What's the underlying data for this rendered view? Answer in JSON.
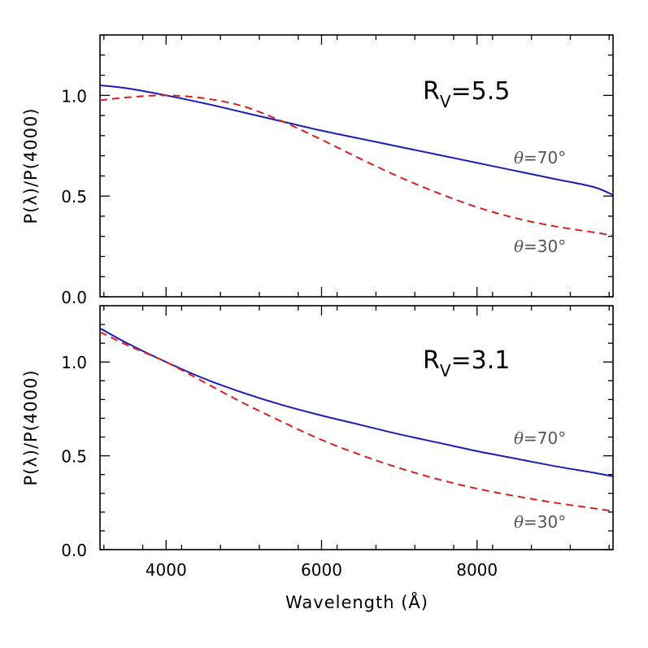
{
  "chart_data": [
    {
      "type": "line",
      "panel_label_main": "R",
      "panel_label_sub": "V",
      "panel_label_value": "=5.5",
      "ylabel": "P(λ)/P(4000)",
      "xlabel": "",
      "xlim": [
        3150,
        9750
      ],
      "ylim": [
        0.0,
        1.3
      ],
      "xticks": [
        4000,
        6000,
        8000
      ],
      "xtick_labels": [
        "",
        "",
        ""
      ],
      "yticks": [
        0.0,
        0.5,
        1.0
      ],
      "ytick_labels": [
        "0.0",
        "0.5",
        "1.0"
      ],
      "series": [
        {
          "name": "θ=70°",
          "style": "solid",
          "color": "#1c1cb8",
          "x": [
            3150,
            3500,
            4000,
            4500,
            5000,
            5500,
            6000,
            6500,
            7000,
            7500,
            8000,
            8500,
            9000,
            9500,
            9750
          ],
          "values": [
            1.05,
            1.035,
            1.0,
            0.96,
            0.915,
            0.87,
            0.825,
            0.785,
            0.745,
            0.705,
            0.665,
            0.625,
            0.585,
            0.545,
            0.505
          ]
        },
        {
          "name": "θ=30°",
          "style": "dashed",
          "color": "#d42020",
          "x": [
            3150,
            3500,
            4000,
            4500,
            5000,
            5500,
            6000,
            6500,
            7000,
            7500,
            8000,
            8500,
            9000,
            9500,
            9750
          ],
          "values": [
            0.975,
            0.99,
            1.0,
            0.985,
            0.945,
            0.87,
            0.78,
            0.685,
            0.595,
            0.515,
            0.445,
            0.39,
            0.35,
            0.32,
            0.305
          ]
        }
      ],
      "annotations": [
        {
          "theta": "θ",
          "text": "=70°",
          "x": 9100,
          "y": 0.69
        },
        {
          "theta": "θ",
          "text": "=30°",
          "x": 9100,
          "y": 0.25
        }
      ]
    },
    {
      "type": "line",
      "panel_label_main": "R",
      "panel_label_sub": "V",
      "panel_label_value": "=3.1",
      "ylabel": "P(λ)/P(4000)",
      "xlabel": "Wavelength (Å)",
      "xlim": [
        3150,
        9750
      ],
      "ylim": [
        0.0,
        1.3
      ],
      "xticks": [
        4000,
        6000,
        8000
      ],
      "xtick_labels": [
        "4000",
        "6000",
        "8000"
      ],
      "yticks": [
        0.0,
        0.5,
        1.0
      ],
      "ytick_labels": [
        "0.0",
        "0.5",
        "1.0"
      ],
      "series": [
        {
          "name": "θ=70°",
          "style": "solid",
          "color": "#1c1cb8",
          "x": [
            3150,
            3500,
            4000,
            4500,
            5000,
            5500,
            6000,
            6500,
            7000,
            7500,
            8000,
            8500,
            9000,
            9500,
            9750
          ],
          "values": [
            1.18,
            1.1,
            1.0,
            0.91,
            0.835,
            0.77,
            0.715,
            0.665,
            0.615,
            0.57,
            0.525,
            0.485,
            0.445,
            0.41,
            0.39
          ]
        },
        {
          "name": "θ=30°",
          "style": "dashed",
          "color": "#d42020",
          "x": [
            3150,
            3500,
            4000,
            4500,
            5000,
            5500,
            6000,
            6500,
            7000,
            7500,
            8000,
            8500,
            9000,
            9500,
            9750
          ],
          "values": [
            1.16,
            1.09,
            1.0,
            0.89,
            0.78,
            0.68,
            0.585,
            0.505,
            0.435,
            0.375,
            0.325,
            0.285,
            0.25,
            0.22,
            0.205
          ]
        }
      ],
      "annotations": [
        {
          "theta": "θ",
          "text": "=70°",
          "x": 9100,
          "y": 0.72
        },
        {
          "theta": "θ",
          "text": "=30°",
          "x": 9100,
          "y": 0.17
        }
      ]
    }
  ]
}
